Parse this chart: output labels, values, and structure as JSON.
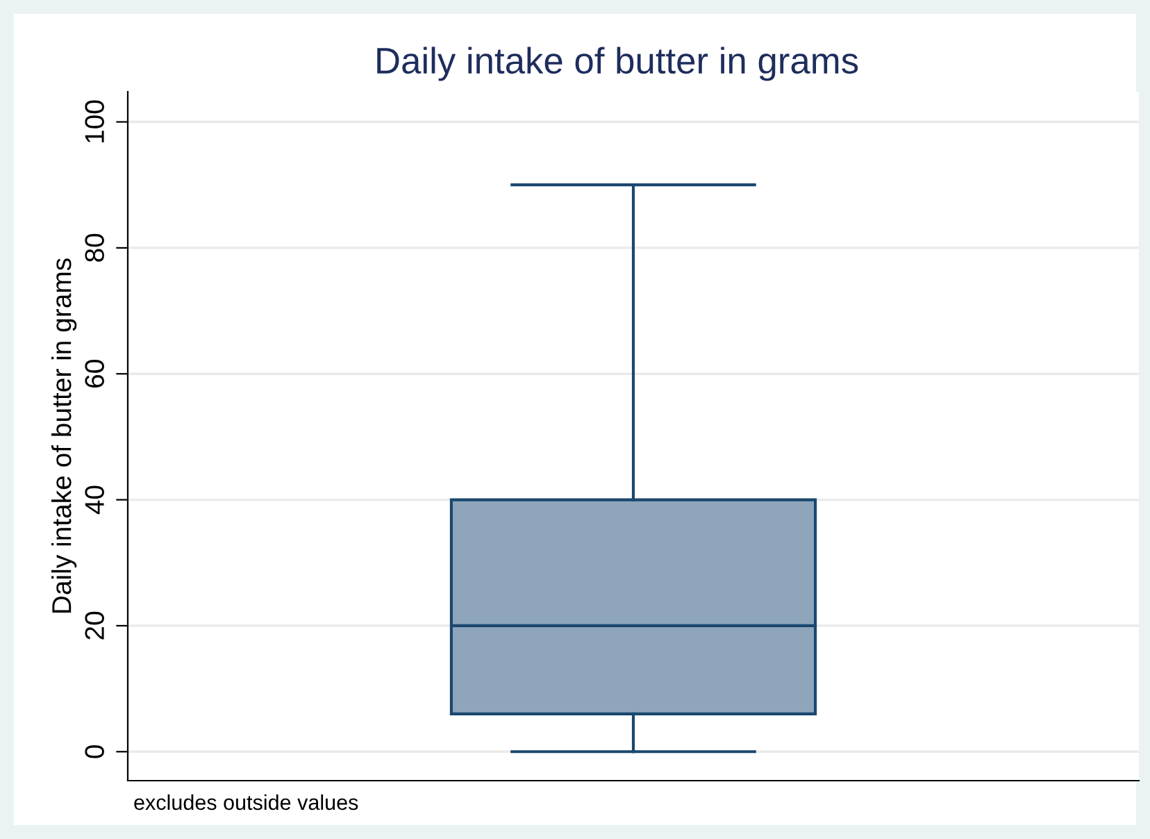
{
  "chart_data": {
    "type": "box",
    "title": "Daily intake of butter in grams",
    "ylabel": "Daily intake of butter in grams",
    "categories": [
      null
    ],
    "boxes": [
      {
        "low": 0,
        "q1": 6,
        "median": 20,
        "q3": 40,
        "high": 90
      }
    ],
    "color": "#8ea5bb",
    "ylim": [
      -4.6,
      104.8
    ],
    "yticks": [
      0,
      20,
      40,
      60,
      80,
      100
    ],
    "grid": "y",
    "annotations": [
      "excludes outside values"
    ]
  }
}
